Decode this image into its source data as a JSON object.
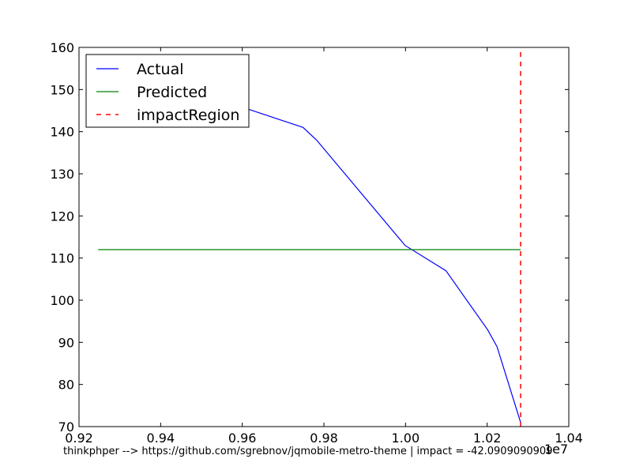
{
  "chart_data": {
    "type": "line",
    "x_offset_label": "1e7",
    "xlim": [
      0.92,
      1.04
    ],
    "ylim": [
      70,
      160
    ],
    "x_ticks": [
      "0.92",
      "0.94",
      "0.96",
      "0.98",
      "1.00",
      "1.02",
      "1.04"
    ],
    "y_ticks": [
      "70",
      "80",
      "90",
      "100",
      "110",
      "120",
      "130",
      "140",
      "150",
      "160"
    ],
    "x_tick_values": [
      0.92,
      0.94,
      0.96,
      0.98,
      1.0,
      1.02,
      1.04
    ],
    "y_tick_values": [
      70,
      80,
      90,
      100,
      110,
      120,
      130,
      140,
      150,
      160
    ],
    "series": [
      {
        "name": "Actual",
        "color": "#0000ff",
        "style": "solid",
        "x": [
          0.9563,
          0.9749,
          0.9782,
          0.9999,
          1.0099,
          1.0201,
          1.0224,
          1.0282
        ],
        "y": [
          147.0,
          141.0,
          138.0,
          113.0,
          107.0,
          93.0,
          89.0,
          71.0
        ]
      },
      {
        "name": "Predicted",
        "color": "#008000",
        "style": "solid",
        "x": [
          0.9247,
          1.0282
        ],
        "y": [
          112.0,
          112.0
        ]
      },
      {
        "name": "impactRegion",
        "color": "#ff0000",
        "style": "dashed",
        "x": [
          1.0282,
          1.0282
        ],
        "y": [
          70,
          160
        ]
      }
    ],
    "legend_position": "top-left",
    "grid": false,
    "caption": "thinkphper --> https://github.com/sgrebnov/jqmobile-metro-theme | impact = -42.0909090909"
  }
}
